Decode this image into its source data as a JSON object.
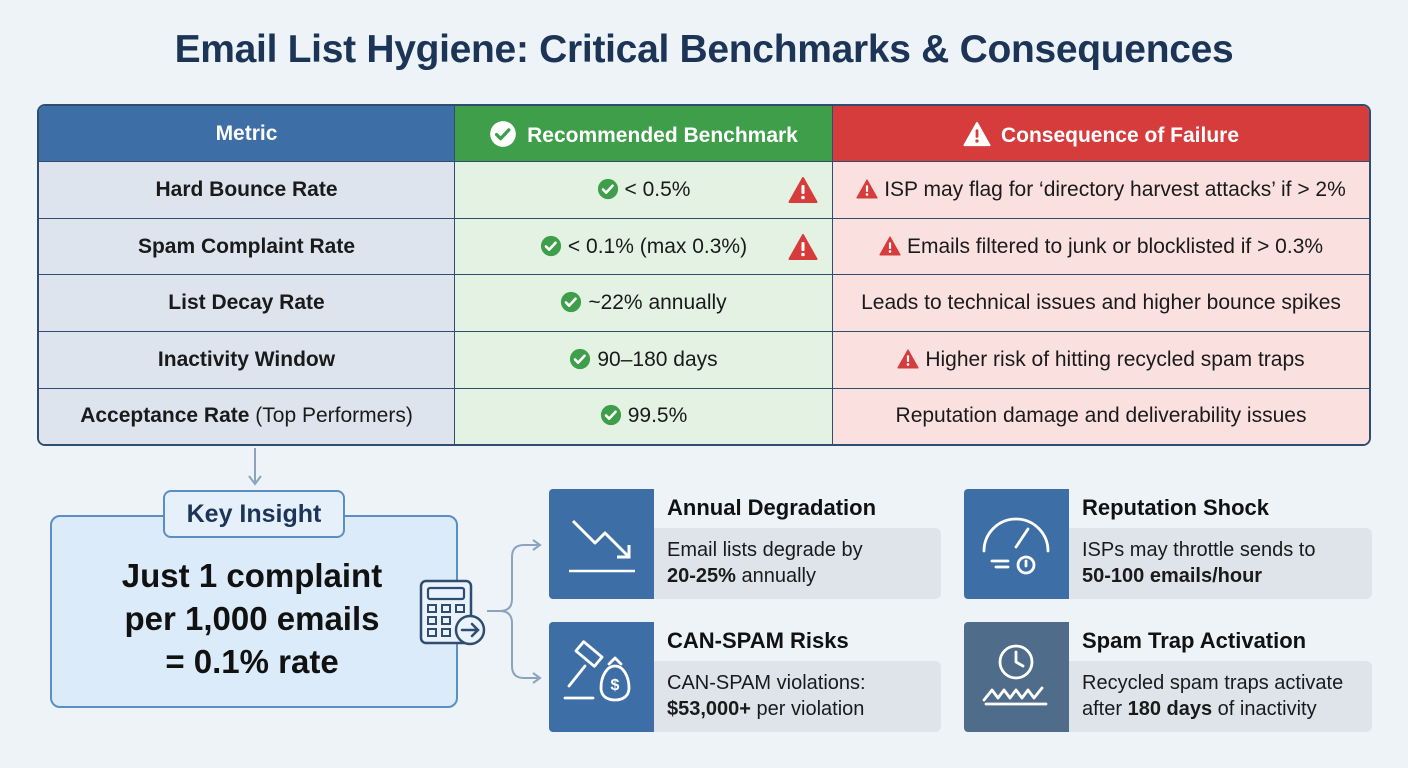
{
  "title": "Email List Hygiene: Critical Benchmarks & Consequences",
  "table": {
    "headers": [
      "Metric",
      "Recommended Benchmark",
      "Consequence of Failure"
    ],
    "rows": [
      {
        "metric": "Hard Bounce Rate",
        "benchmark": "< 0.5%",
        "consequence": "ISP may flag for ‘directory harvest attacks’ if > 2%"
      },
      {
        "metric": "Spam Complaint Rate",
        "benchmark": "< 0.1% (max 0.3%)",
        "consequence": "Emails filtered to junk or blocklisted if > 0.3%"
      },
      {
        "metric": "List Decay Rate",
        "benchmark": "~22% annually",
        "consequence": "Leads to technical issues and higher bounce spikes"
      },
      {
        "metric": "Inactivity Window",
        "benchmark": "90–180 days",
        "consequence": "Higher risk of hitting recycled spam traps"
      },
      {
        "metric": "Acceptance Rate",
        "metric_note": "(Top Performers)",
        "benchmark": "99.5%",
        "consequence": "Reputation damage and deliverability issues"
      }
    ]
  },
  "key_insight": {
    "label": "Key Insight",
    "lines": [
      "Just 1 complaint",
      "per 1,000 emails",
      "= 0.1% rate"
    ]
  },
  "cards": [
    {
      "title": "Annual Degradation",
      "lines": [
        [
          {
            "text": "Email lists degrade by"
          }
        ],
        [
          {
            "text": "20-25%",
            "bold": true
          },
          {
            "text": " annually"
          }
        ]
      ]
    },
    {
      "title": "CAN-SPAM Risks",
      "lines": [
        [
          {
            "text": "CAN-SPAM violations:"
          }
        ],
        [
          {
            "text": "$53,000+",
            "bold": true
          },
          {
            "text": " per violation"
          }
        ]
      ]
    },
    {
      "title": "Reputation Shock",
      "lines": [
        [
          {
            "text": "ISPs may throttle sends to"
          }
        ],
        [
          {
            "text": "50-100 emails/hour",
            "bold": true
          }
        ]
      ]
    },
    {
      "title": "Spam Trap Activation",
      "lines": [
        [
          {
            "text": "Recycled spam traps activate"
          }
        ],
        [
          {
            "text": "after "
          },
          {
            "text": "180 days",
            "bold": true
          },
          {
            "text": " of inactivity"
          }
        ]
      ]
    }
  ]
}
